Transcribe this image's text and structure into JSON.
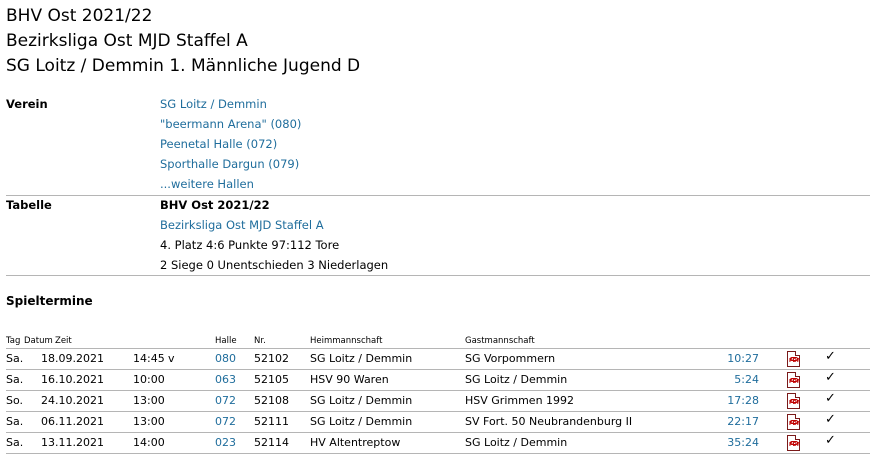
{
  "titles": [
    "BHV Ost 2021/22",
    "Bezirksliga Ost MJD Staffel A",
    "SG Loitz / Demmin 1. Männliche Jugend D"
  ],
  "verein": {
    "label": "Verein",
    "club": "SG Loitz / Demmin",
    "halls": [
      "\"beermann Arena\" (080)",
      "Peenetal Halle (072)",
      "Sporthalle Dargun (079)"
    ],
    "more": "...weitere Hallen"
  },
  "tabelle": {
    "label": "Tabelle",
    "org": "BHV Ost 2021/22",
    "league": "Bezirksliga Ost MJD Staffel A",
    "placing": "4. Platz 4:6 Punkte 97:112 Tore",
    "record": "2 Siege 0 Unentschieden 3 Niederlagen"
  },
  "schedule": {
    "title": "Spieltermine",
    "headers": {
      "tag": "Tag",
      "datum": "Datum",
      "zeit": "Zeit",
      "halle": "Halle",
      "nr": "Nr.",
      "heim": "Heimmannschaft",
      "gast": "Gastmannschaft"
    },
    "rows": [
      {
        "tag": "Sa.",
        "datum": "18.09.2021",
        "zeit": "14:45",
        "flag": "v",
        "halle": "080",
        "nr": "52102",
        "heim": "SG Loitz / Demmin",
        "gast": "SG Vorpommern",
        "ergebnis": "10:27"
      },
      {
        "tag": "Sa.",
        "datum": "16.10.2021",
        "zeit": "10:00",
        "flag": "",
        "halle": "063",
        "nr": "52105",
        "heim": "HSV 90 Waren",
        "gast": "SG Loitz / Demmin",
        "ergebnis": "5:24"
      },
      {
        "tag": "So.",
        "datum": "24.10.2021",
        "zeit": "13:00",
        "flag": "",
        "halle": "072",
        "nr": "52108",
        "heim": "SG Loitz / Demmin",
        "gast": "HSV Grimmen 1992",
        "ergebnis": "17:28"
      },
      {
        "tag": "Sa.",
        "datum": "06.11.2021",
        "zeit": "13:00",
        "flag": "",
        "halle": "072",
        "nr": "52111",
        "heim": "SG Loitz / Demmin",
        "gast": "SV Fort. 50 Neubrandenburg II",
        "ergebnis": "22:17"
      },
      {
        "tag": "Sa.",
        "datum": "13.11.2021",
        "zeit": "14:00",
        "flag": "",
        "halle": "023",
        "nr": "52114",
        "heim": "HV Altentreptow",
        "gast": "SG Loitz / Demmin",
        "ergebnis": "35:24"
      }
    ],
    "pdf_icon": "pdf-icon",
    "check_icon": "checkmark-icon",
    "check_glyph": "✓"
  },
  "colors": {
    "link": "#1f6d9c",
    "divider": "#b5b5b5"
  }
}
